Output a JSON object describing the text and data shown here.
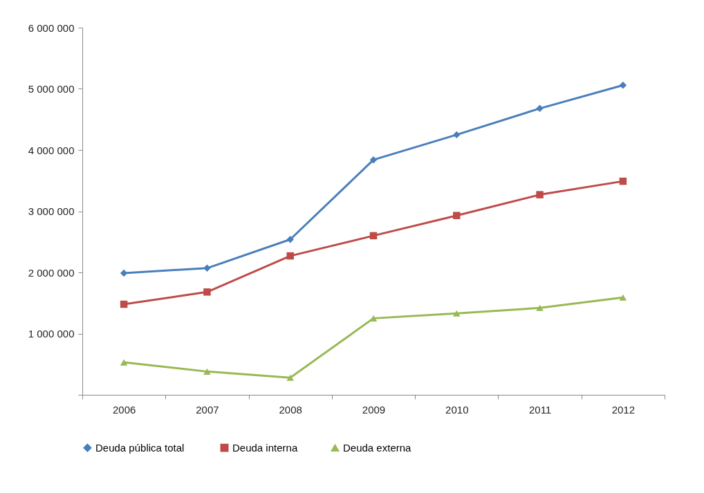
{
  "chart_data": {
    "type": "line",
    "categories": [
      "2006",
      "2007",
      "2008",
      "2009",
      "2010",
      "2011",
      "2012"
    ],
    "series": [
      {
        "name": "Deuda pública  total",
        "color": "#4a7ebb",
        "marker": "diamond",
        "values": [
          1990000,
          2070000,
          2540000,
          3840000,
          4250000,
          4680000,
          5060000
        ]
      },
      {
        "name": "Deuda interna",
        "color": "#be4b48",
        "marker": "square",
        "values": [
          1480000,
          1680000,
          2270000,
          2600000,
          2930000,
          3270000,
          3490000
        ]
      },
      {
        "name": "Deuda externa",
        "color": "#98b954",
        "marker": "triangle",
        "values": [
          530000,
          380000,
          280000,
          1250000,
          1330000,
          1420000,
          1590000
        ]
      }
    ],
    "ylim": [
      0,
      6000000
    ],
    "yticks": [
      {
        "value": 0,
        "label": null
      },
      {
        "value": 1000000,
        "label": "1 000 000"
      },
      {
        "value": 2000000,
        "label": "2 000 000"
      },
      {
        "value": 3000000,
        "label": "3 000 000"
      },
      {
        "value": 4000000,
        "label": "4 000 000"
      },
      {
        "value": 5000000,
        "label": "5 000 000"
      },
      {
        "value": 6000000,
        "label": "6 000 000"
      }
    ],
    "grid": false,
    "legend": "bottom",
    "line_style": "solid"
  }
}
